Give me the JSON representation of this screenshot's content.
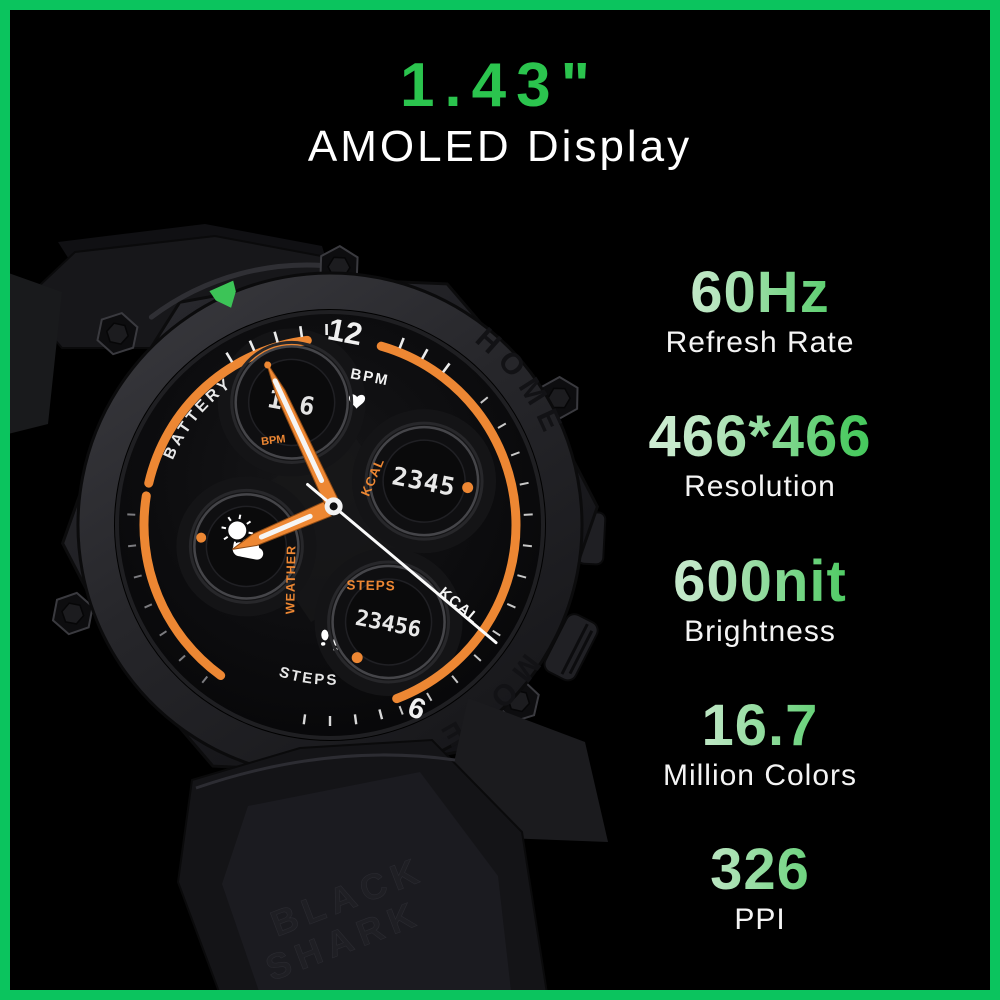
{
  "page": {
    "background": "#000000",
    "frame_color": "#0bc45e"
  },
  "header": {
    "title": "1.43\"",
    "subtitle": "AMOLED Display",
    "title_color": "#2bc44e"
  },
  "specs": [
    {
      "value": "60Hz",
      "label": "Refresh Rate"
    },
    {
      "value": "466*466",
      "label": "Resolution"
    },
    {
      "value": "600nit",
      "label": "Brightness"
    },
    {
      "value": "16.7",
      "label": "Million Colors"
    },
    {
      "value": "326",
      "label": "PPI"
    }
  ],
  "watch": {
    "bezel": {
      "home": "HOME",
      "mode": "MODE"
    },
    "dial": {
      "numeral_top": "12",
      "numeral_bottom": "6",
      "battery_label": "BATTERY",
      "bpm_label": "BPM",
      "steps_label": "STEPS",
      "kcal_hand_label": "KCAL"
    },
    "subdials": {
      "top": {
        "value": "1 6",
        "label": "BPM"
      },
      "right": {
        "value": "2345",
        "label": "KCAL"
      },
      "bottom": {
        "value": "23456",
        "label": "STEPS"
      },
      "left": {
        "label": "WEATHER",
        "icon": "sun-cloud"
      }
    },
    "strap": {
      "line1": "BLACK",
      "line2": "SHARK"
    },
    "colors": {
      "accent_orange": "#ed8733",
      "marker_green": "#3cc457"
    },
    "icons": [
      "lightning-icon",
      "heart-icon",
      "footprints-icon",
      "sun-cloud-icon"
    ]
  }
}
